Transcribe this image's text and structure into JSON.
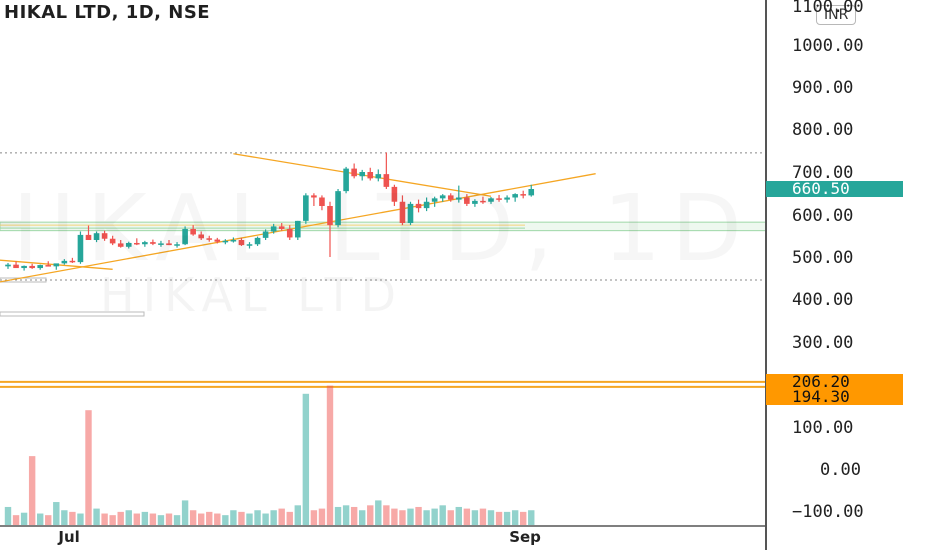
{
  "chart_data": {
    "type": "candlestick",
    "title": "HIKAL LTD, 1D, NSE",
    "watermark": "HIKAL LTD",
    "currency": "INR",
    "ylim": [
      -130,
      1110
    ],
    "y_ticks": [
      "1100.00",
      "1000.00",
      "900.00",
      "800.00",
      "700.00",
      "600.00",
      "500.00",
      "400.00",
      "300.00",
      "206.20",
      "194.30",
      "100.00",
      "0.00",
      "−100.00"
    ],
    "x_ticks": [
      {
        "label": "Jul",
        "index": 8
      },
      {
        "label": "Sep",
        "index": 64
      }
    ],
    "last_price": "660.50",
    "price_labels": [
      "206.20",
      "194.30"
    ],
    "colors": {
      "up": "#26a69a",
      "down": "#ef5350",
      "trend": "#f5a623",
      "zone": "#9fd8a7",
      "level": "#f5a623"
    },
    "ohlc": [
      [
        478,
        486,
        472,
        482
      ],
      [
        482,
        490,
        476,
        474
      ],
      [
        474,
        480,
        468,
        479
      ],
      [
        479,
        484,
        472,
        474
      ],
      [
        474,
        482,
        470,
        481
      ],
      [
        481,
        490,
        478,
        478
      ],
      [
        478,
        484,
        470,
        485
      ],
      [
        485,
        495,
        482,
        491
      ],
      [
        491,
        498,
        486,
        488
      ],
      [
        488,
        560,
        484,
        552
      ],
      [
        552,
        574,
        540,
        540
      ],
      [
        540,
        560,
        535,
        556
      ],
      [
        556,
        562,
        538,
        543
      ],
      [
        543,
        550,
        528,
        532
      ],
      [
        532,
        540,
        522,
        524
      ],
      [
        524,
        536,
        520,
        533
      ],
      [
        533,
        544,
        528,
        530
      ],
      [
        530,
        538,
        524,
        535
      ],
      [
        535,
        541,
        528,
        531
      ],
      [
        531,
        538,
        524,
        532
      ],
      [
        532,
        540,
        528,
        528
      ],
      [
        528,
        535,
        522,
        530
      ],
      [
        530,
        572,
        528,
        566
      ],
      [
        566,
        575,
        550,
        553
      ],
      [
        553,
        560,
        540,
        544
      ],
      [
        544,
        550,
        536,
        541
      ],
      [
        541,
        545,
        532,
        536
      ],
      [
        536,
        542,
        530,
        538
      ],
      [
        538,
        546,
        534,
        540
      ],
      [
        540,
        545,
        526,
        528
      ],
      [
        528,
        535,
        520,
        530
      ],
      [
        530,
        548,
        526,
        545
      ],
      [
        545,
        565,
        540,
        560
      ],
      [
        560,
        578,
        555,
        572
      ],
      [
        572,
        580,
        562,
        566
      ],
      [
        566,
        575,
        540,
        546
      ],
      [
        546,
        585,
        540,
        585
      ],
      [
        585,
        650,
        578,
        645
      ],
      [
        645,
        650,
        620,
        640
      ],
      [
        640,
        645,
        610,
        620
      ],
      [
        620,
        630,
        500,
        575
      ],
      [
        575,
        660,
        570,
        655
      ],
      [
        655,
        712,
        650,
        708
      ],
      [
        708,
        720,
        685,
        690
      ],
      [
        690,
        705,
        680,
        700
      ],
      [
        700,
        710,
        680,
        685
      ],
      [
        685,
        706,
        678,
        695
      ],
      [
        695,
        746,
        660,
        665
      ],
      [
        665,
        670,
        620,
        630
      ],
      [
        630,
        645,
        575,
        580
      ],
      [
        580,
        630,
        575,
        625
      ],
      [
        625,
        635,
        605,
        615
      ],
      [
        615,
        640,
        608,
        630
      ],
      [
        630,
        642,
        618,
        638
      ],
      [
        638,
        648,
        630,
        645
      ],
      [
        645,
        650,
        630,
        635
      ],
      [
        635,
        668,
        628,
        640
      ],
      [
        640,
        648,
        620,
        625
      ],
      [
        625,
        636,
        618,
        632
      ],
      [
        632,
        642,
        625,
        630
      ],
      [
        630,
        641,
        625,
        638
      ],
      [
        638,
        646,
        630,
        635
      ],
      [
        635,
        645,
        628,
        640
      ],
      [
        640,
        650,
        630,
        648
      ],
      [
        648,
        656,
        638,
        645
      ],
      [
        645,
        670,
        642,
        660
      ]
    ],
    "volume": [
      [
        null,
        0
      ],
      [
        30,
        0
      ],
      [
        45,
        1
      ],
      [
        85,
        0
      ],
      [
        35,
        1
      ],
      [
        20,
        0
      ],
      [
        45,
        1
      ],
      [
        30,
        0
      ],
      [
        75,
        0
      ],
      [
        15,
        0
      ]
    ],
    "volumes": [
      22,
      12,
      15,
      84,
      14,
      12,
      28,
      18,
      16,
      14,
      140,
      20,
      14,
      12,
      16,
      18,
      14,
      16,
      14,
      12,
      14,
      12,
      30,
      18,
      14,
      16,
      14,
      12,
      18,
      16,
      14,
      18,
      14,
      18,
      20,
      16,
      24,
      160,
      18,
      20,
      170,
      22,
      24,
      22,
      18,
      24,
      30,
      24,
      20,
      18,
      20,
      22,
      18,
      20,
      24,
      18,
      22,
      20,
      18,
      20,
      18,
      16,
      16,
      18,
      16,
      18
    ],
    "trendlines": [
      {
        "from": [
          -2,
          494
        ],
        "to": [
          13,
          471
        ]
      },
      {
        "from": [
          -2,
          438
        ],
        "to": [
          73,
          696
        ]
      },
      {
        "from": [
          28,
          743
        ],
        "to": [
          60,
          643
        ]
      }
    ],
    "levels": [
      {
        "price": 206.2,
        "style": "solid"
      },
      {
        "price": 194.3,
        "style": "solid"
      },
      {
        "price": 745,
        "style": "dotted"
      },
      {
        "price": 446,
        "style": "dotted"
      }
    ],
    "zone": {
      "high": 582,
      "low": 562
    }
  }
}
